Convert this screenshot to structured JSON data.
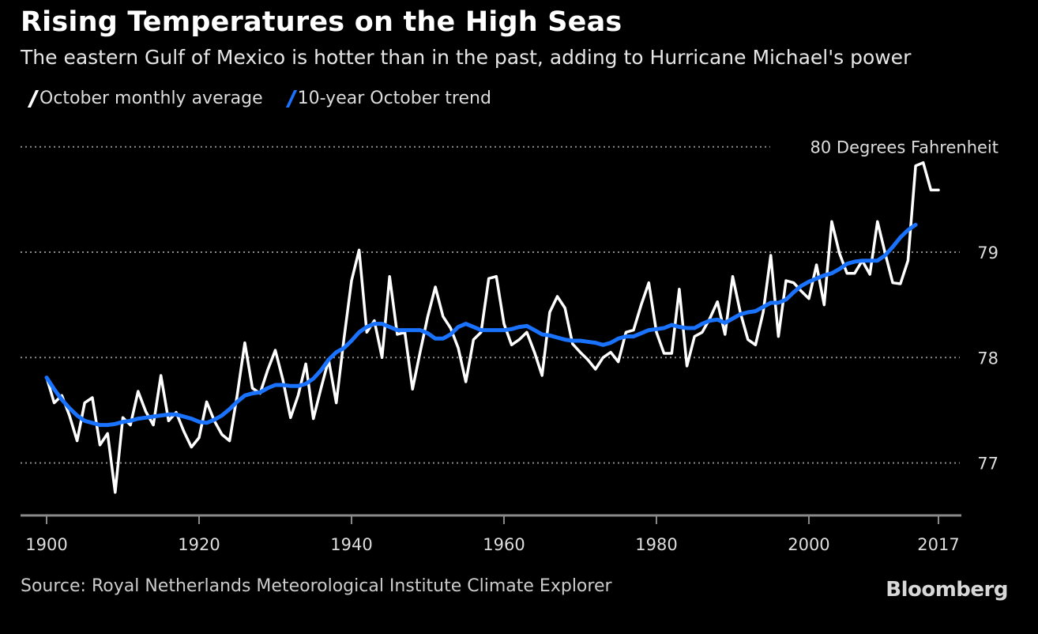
{
  "header": {
    "title": "Rising Temperatures on the High Seas",
    "subtitle": "The eastern Gulf of Mexico is hotter than in the past, adding to Hurricane Michael's power"
  },
  "legend": [
    {
      "label": "October monthly average",
      "color": "#ffffff"
    },
    {
      "label": "10-year October trend",
      "color": "#1a73ff"
    }
  ],
  "footer": {
    "source": "Source: Royal Netherlands Meteorological Institute Climate Explorer",
    "brand": "Bloomberg"
  },
  "chart_data": {
    "type": "line",
    "title": "Rising Temperatures on the High Seas",
    "subtitle": "The eastern Gulf of Mexico is hotter than in the past, adding to Hurricane Michael's power",
    "xlabel": "",
    "ylabel": "",
    "xlim": [
      1900,
      2017
    ],
    "ylim": [
      76.5,
      80.0
    ],
    "x_ticks": [
      1900,
      1920,
      1940,
      1960,
      1980,
      2000,
      2017
    ],
    "y_ticks": [
      {
        "value": 77,
        "label": "77"
      },
      {
        "value": 78,
        "label": "78"
      },
      {
        "value": 79,
        "label": "79"
      },
      {
        "value": 80,
        "label": "80 Degrees Fahrenheit"
      }
    ],
    "grid": "horizontal dotted",
    "legend_position": "top-left",
    "series": [
      {
        "name": "October monthly average",
        "color": "#ffffff",
        "start_year": 1900,
        "values": [
          77.81,
          77.57,
          77.64,
          77.45,
          77.21,
          77.57,
          77.62,
          77.17,
          77.28,
          76.72,
          77.43,
          77.36,
          77.68,
          77.49,
          77.36,
          77.83,
          77.4,
          77.48,
          77.3,
          77.15,
          77.24,
          77.58,
          77.4,
          77.27,
          77.21,
          77.64,
          78.14,
          77.71,
          77.66,
          77.88,
          78.07,
          77.79,
          77.43,
          77.64,
          77.94,
          77.42,
          77.71,
          77.98,
          77.57,
          78.17,
          78.73,
          79.02,
          78.24,
          78.35,
          78.0,
          78.77,
          78.22,
          78.24,
          77.7,
          78.05,
          78.39,
          78.67,
          78.39,
          78.28,
          78.09,
          77.77,
          78.17,
          78.24,
          78.75,
          78.77,
          78.32,
          78.12,
          78.17,
          78.24,
          78.05,
          77.83,
          78.43,
          78.58,
          78.47,
          78.13,
          78.05,
          77.98,
          77.89,
          78.0,
          78.05,
          77.96,
          78.24,
          78.26,
          78.5,
          78.71,
          78.24,
          78.04,
          78.04,
          78.65,
          77.92,
          78.2,
          78.24,
          78.37,
          78.53,
          78.22,
          78.77,
          78.43,
          78.17,
          78.12,
          78.43,
          78.97,
          78.2,
          78.73,
          78.71,
          78.63,
          78.56,
          78.88,
          78.5,
          79.29,
          78.99,
          78.8,
          78.8,
          78.92,
          78.79,
          79.29,
          78.99,
          78.71,
          78.7,
          78.92,
          79.82,
          79.85,
          79.59,
          79.59
        ]
      },
      {
        "name": "10-year October trend",
        "color": "#1a73ff",
        "start_year": 1900,
        "values": [
          77.81,
          77.7,
          77.6,
          77.52,
          77.45,
          77.4,
          77.38,
          77.36,
          77.36,
          77.37,
          77.39,
          77.4,
          77.42,
          77.43,
          77.44,
          77.45,
          77.46,
          77.46,
          77.44,
          77.42,
          77.39,
          77.38,
          77.41,
          77.45,
          77.51,
          77.58,
          77.64,
          77.66,
          77.67,
          77.71,
          77.74,
          77.74,
          77.73,
          77.73,
          77.75,
          77.8,
          77.88,
          77.98,
          78.05,
          78.09,
          78.16,
          78.24,
          78.29,
          78.32,
          78.32,
          78.29,
          78.26,
          78.26,
          78.26,
          78.26,
          78.23,
          78.18,
          78.18,
          78.22,
          78.29,
          78.32,
          78.29,
          78.26,
          78.26,
          78.26,
          78.26,
          78.27,
          78.29,
          78.3,
          78.26,
          78.22,
          78.21,
          78.19,
          78.17,
          78.16,
          78.16,
          78.15,
          78.14,
          78.12,
          78.14,
          78.18,
          78.2,
          78.2,
          78.23,
          78.26,
          78.27,
          78.28,
          78.31,
          78.29,
          78.28,
          78.28,
          78.32,
          78.35,
          78.36,
          78.33,
          78.37,
          78.41,
          78.43,
          78.44,
          78.48,
          78.52,
          78.52,
          78.55,
          78.62,
          78.68,
          78.72,
          78.75,
          78.78,
          78.8,
          78.84,
          78.89,
          78.91,
          78.92,
          78.92,
          78.92,
          78.97,
          79.05,
          79.14,
          79.21,
          79.26
        ]
      }
    ]
  }
}
